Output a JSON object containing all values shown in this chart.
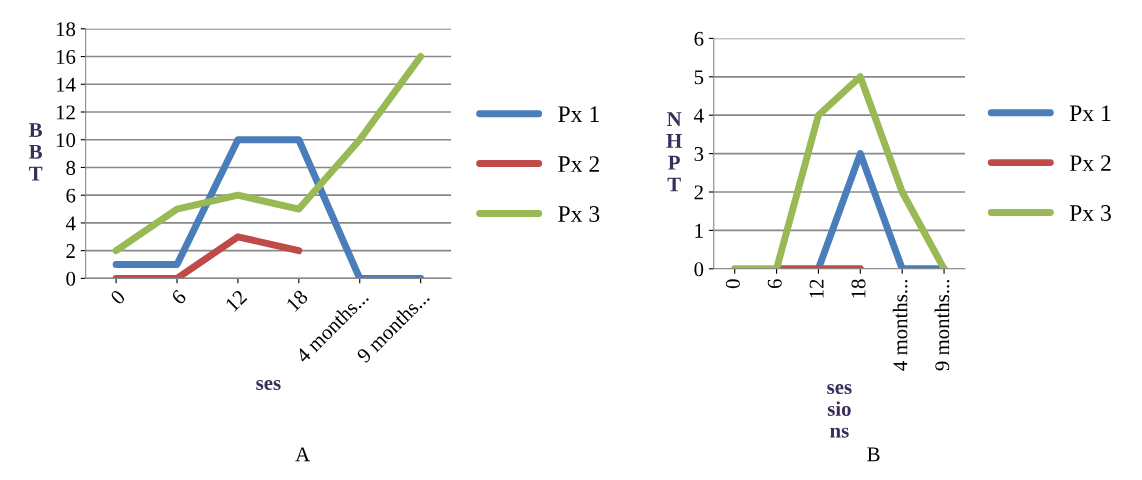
{
  "chart_data": [
    {
      "type": "line",
      "ylabel": "B\nB\nT",
      "xlabel": "ses",
      "categories": [
        "0",
        "6",
        "12",
        "18",
        "4 months...",
        "9 months..."
      ],
      "series": [
        {
          "name": "Px 1",
          "color": "#4a7ebb",
          "values": [
            1,
            1,
            10,
            10,
            0,
            0
          ]
        },
        {
          "name": "Px 2",
          "color": "#be4b48",
          "values": [
            0,
            0,
            3,
            2,
            null,
            null
          ]
        },
        {
          "name": "Px 3",
          "color": "#98b954",
          "values": [
            2,
            5,
            6,
            5,
            10,
            16
          ]
        }
      ],
      "ylim": [
        0,
        18
      ],
      "yticks": [
        0,
        2,
        4,
        6,
        8,
        10,
        12,
        14,
        16,
        18
      ],
      "grid": "y",
      "legend": "right",
      "annotations": [
        "A"
      ]
    },
    {
      "type": "line",
      "ylabel": "N\nH\nP\nT",
      "xlabel": "ses\nsio\nns",
      "categories": [
        "0",
        "6",
        "12",
        "18",
        "4 months...",
        "9 months..."
      ],
      "series": [
        {
          "name": "Px 1",
          "color": "#4a7ebb",
          "values": [
            null,
            null,
            0,
            3,
            0,
            0
          ]
        },
        {
          "name": "Px 2",
          "color": "#be4b48",
          "values": [
            null,
            0,
            0,
            0,
            null,
            null
          ]
        },
        {
          "name": "Px 3",
          "color": "#98b954",
          "values": [
            0,
            0,
            4,
            5,
            2,
            0
          ]
        }
      ],
      "ylim": [
        0,
        6
      ],
      "yticks": [
        0,
        1,
        2,
        3,
        4,
        5,
        6
      ],
      "grid": "y",
      "legend": "right",
      "annotations": [
        "B"
      ]
    }
  ]
}
